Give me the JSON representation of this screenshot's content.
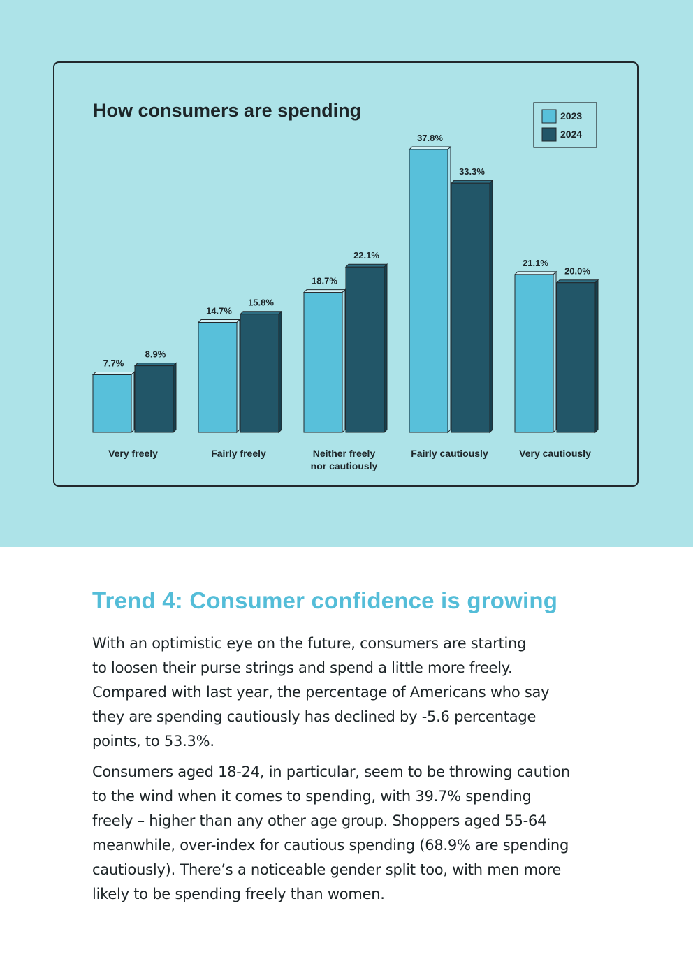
{
  "chart_data": {
    "type": "bar",
    "title": "How consumers are spending",
    "categories": [
      [
        "Very freely"
      ],
      [
        "Fairly freely"
      ],
      [
        "Neither freely",
        "nor cautiously"
      ],
      [
        "Fairly cautiously"
      ],
      [
        "Very cautiously"
      ]
    ],
    "series": [
      {
        "name": "2023",
        "values": [
          7.7,
          14.7,
          18.7,
          37.8,
          21.1
        ],
        "labels": [
          "7.7%",
          "14.7%",
          "18.7%",
          "37.8%",
          "21.1%"
        ],
        "color": "#58c0da",
        "side_color": "#a9e2ee",
        "top_color": "#d2f1f6"
      },
      {
        "name": "2024",
        "values": [
          8.9,
          15.8,
          22.1,
          33.3,
          20.0
        ],
        "labels": [
          "8.9%",
          "15.8%",
          "22.1%",
          "33.3%",
          "20.0%"
        ],
        "color": "#225668",
        "side_color": "#163f4d",
        "top_color": "#2e6f84"
      }
    ],
    "ylim": [
      0,
      37.8
    ],
    "legend": "top-right",
    "xlabel": "",
    "ylabel": ""
  },
  "article": {
    "heading": "Trend 4: Consumer confidence is growing",
    "paragraphs": [
      [
        "With an optimistic eye on the future, consumers are starting",
        "to loosen their purse strings and spend a little more freely.",
        "Compared with last year, the percentage of Americans who say",
        "they are spending cautiously has declined by -5.6 percentage",
        "points, to 53.3%."
      ],
      [
        "Consumers aged 18-24, in particular, seem to be throwing caution",
        "to the wind when it comes to spending, with 39.7% spending",
        "freely – higher than any other age group. Shoppers aged 55-64",
        "meanwhile, over-index for cautious spending (68.9% are spending",
        "cautiously). There’s a noticeable gender split too, with men more",
        "likely to be spending freely than women."
      ]
    ]
  },
  "colors": {
    "background_top": "#ade3e8",
    "heading": "#54bdd8",
    "text": "#1d2528"
  }
}
